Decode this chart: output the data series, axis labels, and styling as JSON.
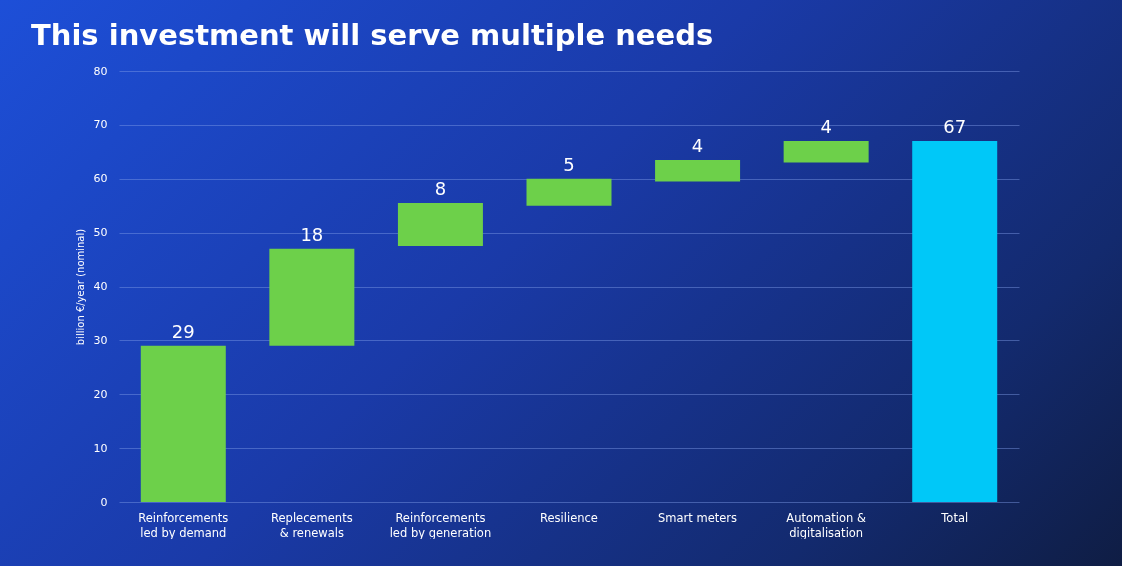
{
  "chart_data": {
    "type": "bar",
    "title": "This investment will serve multiple needs",
    "ylabel": "billion €/year (nominal)",
    "categories": [
      "Reinforcements led by demand",
      "Replecements & renewals",
      "Reinforcements led by generation",
      "Resilience",
      "Smart meters",
      "Automation & digitalisation",
      "Total"
    ],
    "values": [
      29,
      18,
      8,
      5,
      4,
      4,
      67
    ],
    "base": [
      0,
      29,
      47.5,
      55,
      59.5,
      63,
      0
    ],
    "colors": [
      "#6dd04a",
      "#6dd04a",
      "#6dd04a",
      "#6dd04a",
      "#6dd04a",
      "#6dd04a",
      "#00c8f8"
    ],
    "ylim": [
      0,
      80
    ],
    "yticks": [
      0,
      10,
      20,
      30,
      40,
      50,
      60,
      70,
      80
    ],
    "grid": "y",
    "data_labels": true
  }
}
